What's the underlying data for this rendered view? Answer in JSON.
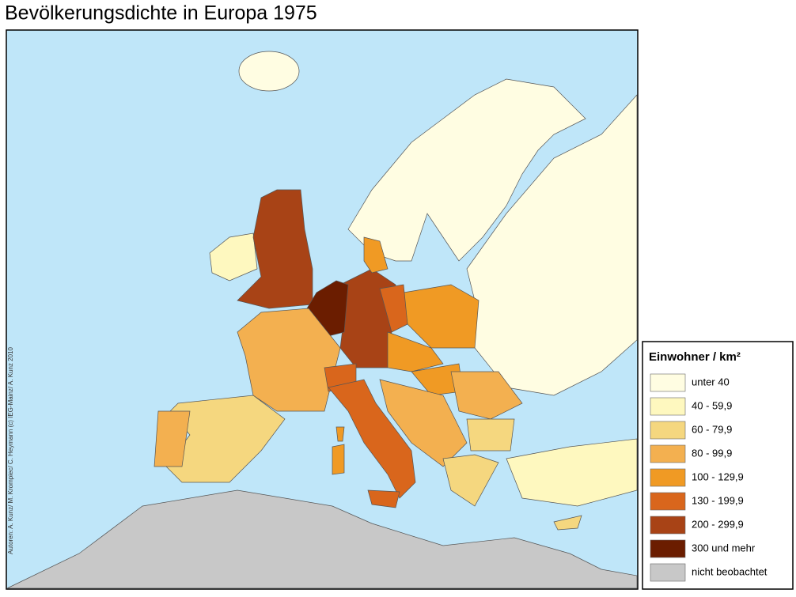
{
  "title": "Bevölkerungsdichte in Europa 1975",
  "credit": "Autoren: A. Kunz/ M. Krompiec/ C. Heymann (c) IEG-Mainz/ A. Kunz 2010",
  "legend": {
    "title": "Einwohner / km²",
    "items": [
      {
        "label": "unter  40",
        "color": "#fffde2"
      },
      {
        "label": "40 -   59,9",
        "color": "#fef8bf"
      },
      {
        "label": "60 -   79,9",
        "color": "#f5d77f"
      },
      {
        "label": "80 -   99,9",
        "color": "#f3b050"
      },
      {
        "label": "100 - 129,9",
        "color": "#f09a24"
      },
      {
        "label": "130 - 199,9",
        "color": "#d9661c"
      },
      {
        "label": "200 - 299,9",
        "color": "#a84316"
      },
      {
        "label": "300 und mehr",
        "color": "#6b1d00"
      },
      {
        "label": "nicht beobachtet",
        "color": "#c8c8c8"
      }
    ]
  }
}
